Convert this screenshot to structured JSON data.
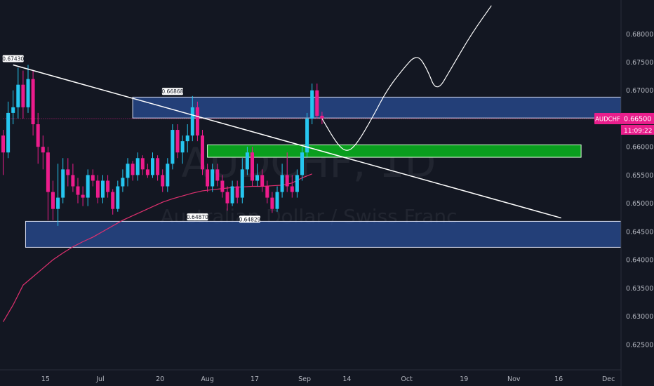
{
  "chart_data": {
    "type": "candlestick",
    "symbol_badge": "AUDCHF",
    "last_price": "0.66500",
    "countdown": "11:09:22",
    "watermark_symbol": "AUDCHF, 1D",
    "watermark_name": "Australian Dollar / Swiss Franc",
    "ylim": [
      0.6205,
      0.686
    ],
    "y_ticks": [
      "0.68000",
      "0.67500",
      "0.67000",
      "0.66500",
      "0.66000",
      "0.65500",
      "0.65000",
      "0.64500",
      "0.64000",
      "0.63500",
      "0.63000",
      "0.62500"
    ],
    "xlim": [
      0,
      123
    ],
    "x_ticks": [
      {
        "label": "15",
        "i": 8.5
      },
      {
        "label": "Jul",
        "i": 19.5
      },
      {
        "label": "20",
        "i": 31.5
      },
      {
        "label": "Aug",
        "i": 41.0
      },
      {
        "label": "17",
        "i": 50.5
      },
      {
        "label": "Sep",
        "i": 60.5
      },
      {
        "label": "14",
        "i": 69.0
      },
      {
        "label": "Oct",
        "i": 81.0
      },
      {
        "label": "19",
        "i": 92.5
      },
      {
        "label": "Nov",
        "i": 102.5
      },
      {
        "label": "16",
        "i": 111.5
      },
      {
        "label": "Dec",
        "i": 121.5
      }
    ],
    "colors": {
      "up": "#26c6f0",
      "down": "#ec1c8c",
      "zone": "#2a4f9a",
      "green_zone": "#0a9e1e",
      "ma": "#e0306f",
      "badge": "#e91e8c"
    },
    "candles": [
      [
        0,
        0.662,
        0.659,
        0.663,
        0.655
      ],
      [
        1,
        0.659,
        0.666,
        0.668,
        0.658
      ],
      [
        2,
        0.666,
        0.667,
        0.67,
        0.664
      ],
      [
        3,
        0.667,
        0.671,
        0.674,
        0.665
      ],
      [
        4,
        0.671,
        0.667,
        0.6735,
        0.665
      ],
      [
        5,
        0.667,
        0.672,
        0.6745,
        0.666
      ],
      [
        6,
        0.672,
        0.664,
        0.6735,
        0.662
      ],
      [
        7,
        0.664,
        0.66,
        0.666,
        0.657
      ],
      [
        8,
        0.66,
        0.659,
        0.662,
        0.656
      ],
      [
        9,
        0.659,
        0.652,
        0.66,
        0.647
      ],
      [
        10,
        0.652,
        0.649,
        0.654,
        0.647
      ],
      [
        11,
        0.649,
        0.651,
        0.657,
        0.646
      ],
      [
        12,
        0.651,
        0.656,
        0.658,
        0.65
      ],
      [
        13,
        0.656,
        0.655,
        0.658,
        0.653
      ],
      [
        14,
        0.655,
        0.653,
        0.657,
        0.652
      ],
      [
        15,
        0.653,
        0.6515,
        0.6545,
        0.65
      ],
      [
        16,
        0.6515,
        0.651,
        0.653,
        0.6495
      ],
      [
        17,
        0.651,
        0.655,
        0.656,
        0.6495
      ],
      [
        18,
        0.655,
        0.654,
        0.656,
        0.653
      ],
      [
        19,
        0.654,
        0.651,
        0.655,
        0.65
      ],
      [
        20,
        0.651,
        0.654,
        0.655,
        0.65
      ],
      [
        21,
        0.654,
        0.652,
        0.655,
        0.651
      ],
      [
        22,
        0.652,
        0.649,
        0.6525,
        0.648
      ],
      [
        23,
        0.649,
        0.653,
        0.654,
        0.6485
      ],
      [
        24,
        0.653,
        0.6545,
        0.656,
        0.652
      ],
      [
        25,
        0.6545,
        0.657,
        0.658,
        0.653
      ],
      [
        26,
        0.657,
        0.655,
        0.6575,
        0.654
      ],
      [
        27,
        0.655,
        0.658,
        0.659,
        0.654
      ],
      [
        28,
        0.658,
        0.656,
        0.6585,
        0.655
      ],
      [
        29,
        0.656,
        0.655,
        0.657,
        0.6545
      ],
      [
        30,
        0.655,
        0.658,
        0.659,
        0.6545
      ],
      [
        31,
        0.658,
        0.655,
        0.6585,
        0.654
      ],
      [
        32,
        0.655,
        0.653,
        0.656,
        0.652
      ],
      [
        33,
        0.653,
        0.657,
        0.658,
        0.652
      ],
      [
        34,
        0.657,
        0.663,
        0.664,
        0.656
      ],
      [
        35,
        0.663,
        0.659,
        0.664,
        0.658
      ],
      [
        36,
        0.659,
        0.661,
        0.662,
        0.657
      ],
      [
        37,
        0.661,
        0.662,
        0.664,
        0.659
      ],
      [
        38,
        0.662,
        0.667,
        0.669,
        0.661
      ],
      [
        39,
        0.667,
        0.662,
        0.668,
        0.661
      ],
      [
        40,
        0.662,
        0.656,
        0.663,
        0.655
      ],
      [
        41,
        0.656,
        0.653,
        0.657,
        0.652
      ],
      [
        42,
        0.653,
        0.656,
        0.657,
        0.652
      ],
      [
        43,
        0.656,
        0.654,
        0.657,
        0.653
      ],
      [
        44,
        0.654,
        0.652,
        0.655,
        0.651
      ],
      [
        45,
        0.652,
        0.65,
        0.653,
        0.6487
      ],
      [
        46,
        0.65,
        0.653,
        0.654,
        0.6495
      ],
      [
        47,
        0.653,
        0.651,
        0.654,
        0.65
      ],
      [
        48,
        0.651,
        0.656,
        0.658,
        0.65
      ],
      [
        49,
        0.656,
        0.659,
        0.66,
        0.655
      ],
      [
        50,
        0.659,
        0.654,
        0.66,
        0.653
      ],
      [
        51,
        0.654,
        0.655,
        0.657,
        0.653
      ],
      [
        52,
        0.655,
        0.653,
        0.656,
        0.652
      ],
      [
        53,
        0.653,
        0.651,
        0.654,
        0.65
      ],
      [
        54,
        0.651,
        0.649,
        0.652,
        0.6483
      ],
      [
        55,
        0.649,
        0.652,
        0.653,
        0.6485
      ],
      [
        56,
        0.652,
        0.655,
        0.657,
        0.651
      ],
      [
        57,
        0.655,
        0.653,
        0.659,
        0.652
      ],
      [
        58,
        0.653,
        0.652,
        0.655,
        0.651
      ],
      [
        59,
        0.652,
        0.655,
        0.656,
        0.651
      ],
      [
        60,
        0.655,
        0.659,
        0.66,
        0.654
      ],
      [
        61,
        0.659,
        0.665,
        0.666,
        0.658
      ],
      [
        62,
        0.665,
        0.67,
        0.6712,
        0.664
      ],
      [
        63,
        0.67,
        0.6655,
        0.6712,
        0.665
      ],
      [
        64,
        0.6655,
        0.665,
        0.6662,
        0.664
      ]
    ],
    "moving_average": [
      [
        0,
        0.629
      ],
      [
        2,
        0.632
      ],
      [
        4,
        0.6355
      ],
      [
        6,
        0.637
      ],
      [
        8,
        0.6385
      ],
      [
        10,
        0.64
      ],
      [
        12,
        0.6412
      ],
      [
        14,
        0.6423
      ],
      [
        16,
        0.6432
      ],
      [
        18,
        0.644
      ],
      [
        20,
        0.645
      ],
      [
        22,
        0.646
      ],
      [
        24,
        0.647
      ],
      [
        26,
        0.6478
      ],
      [
        28,
        0.6486
      ],
      [
        30,
        0.6494
      ],
      [
        32,
        0.6502
      ],
      [
        34,
        0.6508
      ],
      [
        36,
        0.6513
      ],
      [
        38,
        0.6518
      ],
      [
        40,
        0.6522
      ],
      [
        42,
        0.6524
      ],
      [
        44,
        0.6526
      ],
      [
        46,
        0.6528
      ],
      [
        48,
        0.6529
      ],
      [
        50,
        0.653
      ],
      [
        52,
        0.653
      ],
      [
        54,
        0.6531
      ],
      [
        56,
        0.6532
      ],
      [
        58,
        0.6536
      ],
      [
        60,
        0.6545
      ],
      [
        62,
        0.6552
      ]
    ],
    "trendline": [
      [
        2,
        0.6745
      ],
      [
        112,
        0.6474
      ]
    ],
    "projection": [
      [
        64,
        0.665
      ],
      [
        67,
        0.6605
      ],
      [
        69,
        0.659
      ],
      [
        71,
        0.6605
      ],
      [
        74,
        0.665
      ],
      [
        77,
        0.67
      ],
      [
        80,
        0.6735
      ],
      [
        83,
        0.6765
      ],
      [
        85,
        0.674
      ],
      [
        87,
        0.6695
      ],
      [
        90,
        0.674
      ],
      [
        94,
        0.68
      ],
      [
        98,
        0.685
      ]
    ],
    "zones": [
      {
        "name": "upper",
        "from": 26.0,
        "to": 124.0,
        "top": 0.6688,
        "bottom": 0.6651
      },
      {
        "name": "lower",
        "from": 4.5,
        "to": 124.0,
        "top": 0.6468,
        "bottom": 0.6422
      }
    ],
    "green_zone": {
      "from": 41.0,
      "to": 116.0,
      "top": 0.66035,
      "bottom": 0.65815
    },
    "price_labels": [
      {
        "text": "0.67430",
        "i": 2.0,
        "price": 0.6745
      },
      {
        "text": "0.66868",
        "i": 34.0,
        "price": 0.6687
      },
      {
        "text": "0.64870",
        "i": 39.0,
        "price": 0.6487
      },
      {
        "text": "0.64829",
        "i": 49.5,
        "price": 0.6483
      }
    ],
    "current_price_line": 0.665
  }
}
